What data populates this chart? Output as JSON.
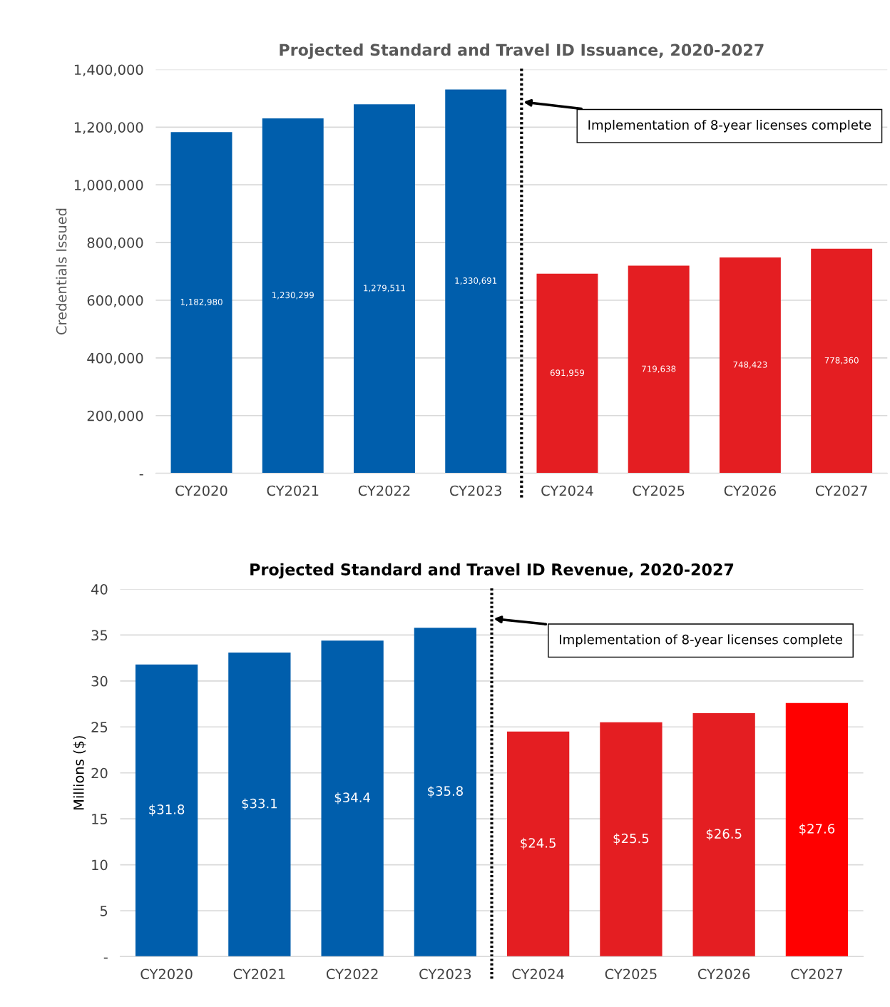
{
  "chart_data": [
    {
      "type": "bar",
      "title": "Projected Standard and Travel ID Issuance, 2020-2027",
      "ylabel": "Credentials Issued",
      "categories": [
        "CY2020",
        "CY2021",
        "CY2022",
        "CY2023",
        "CY2024",
        "CY2025",
        "CY2026",
        "CY2027"
      ],
      "values": [
        1182980,
        1230299,
        1279511,
        1330691,
        691959,
        719638,
        748423,
        778360
      ],
      "value_labels": [
        "1,182,980",
        "1,230,299",
        "1,279,511",
        "1,330,691",
        "691,959",
        "719,638",
        "748,423",
        "778,360"
      ],
      "colors": [
        "#005eac",
        "#005eac",
        "#005eac",
        "#005eac",
        "#e41e22",
        "#e41e22",
        "#e41e22",
        "#e41e22"
      ],
      "ylim": [
        0,
        1400000
      ],
      "yticks": [
        {
          "value": 0,
          "label": "-"
        },
        {
          "value": 200000,
          "label": "200,000"
        },
        {
          "value": 400000,
          "label": "400,000"
        },
        {
          "value": 600000,
          "label": "600,000"
        },
        {
          "value": 800000,
          "label": "800,000"
        },
        {
          "value": 1000000,
          "label": "1,000,000"
        },
        {
          "value": 1200000,
          "label": "1,200,000"
        },
        {
          "value": 1400000,
          "label": "1,400,000"
        }
      ],
      "grid": "y",
      "legend": false,
      "annotations": [
        "Implementation of 8-year licenses complete"
      ]
    },
    {
      "type": "bar",
      "title": "Projected Standard and Travel ID Revenue, 2020-2027",
      "ylabel": "Millions ($)",
      "categories": [
        "CY2020",
        "CY2021",
        "CY2022",
        "CY2023",
        "CY2024",
        "CY2025",
        "CY2026",
        "CY2027"
      ],
      "values": [
        31.8,
        33.1,
        34.4,
        35.8,
        24.5,
        25.5,
        26.5,
        27.6
      ],
      "value_labels": [
        "$31.8",
        "$33.1",
        "$34.4",
        "$35.8",
        "$24.5",
        "$25.5",
        "$26.5",
        "$27.6"
      ],
      "colors": [
        "#005eac",
        "#005eac",
        "#005eac",
        "#005eac",
        "#e41e22",
        "#e41e22",
        "#e41e22",
        "#ff0000"
      ],
      "ylim": [
        0,
        40
      ],
      "yticks": [
        {
          "value": 0,
          "label": "-"
        },
        5,
        10,
        15,
        20,
        25,
        30,
        35,
        40
      ],
      "grid": "y",
      "legend": false,
      "annotations": [
        "Implementation of 8-year licenses complete"
      ]
    }
  ]
}
